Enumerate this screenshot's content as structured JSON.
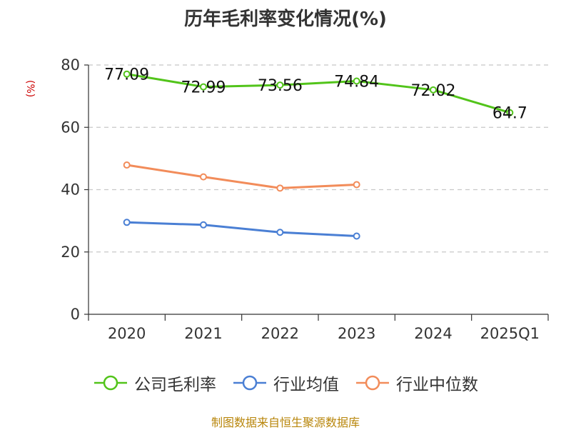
{
  "chart_data": {
    "type": "line",
    "title": "历年毛利率变化情况(%)",
    "unit_label": "(%)",
    "categories": [
      "2020",
      "2021",
      "2022",
      "2023",
      "2024",
      "2025Q1"
    ],
    "ylim": [
      0,
      80
    ],
    "yticks": [
      "0",
      "20",
      "40",
      "60",
      "80"
    ],
    "grid": true,
    "legend_position": "bottom",
    "series": [
      {
        "name": "公司毛利率",
        "color": "#52c41a",
        "values": [
          77.09,
          72.99,
          73.56,
          74.84,
          72.02,
          64.7
        ],
        "labels": [
          "77.09",
          "72.99",
          "73.56",
          "74.84",
          "72.02",
          "64.7"
        ]
      },
      {
        "name": "行业均值",
        "color": "#4a7fd4",
        "values": [
          29.5,
          28.7,
          26.3,
          25.1,
          null,
          null
        ]
      },
      {
        "name": "行业中位数",
        "color": "#f28c5a",
        "values": [
          47.9,
          44.1,
          40.5,
          41.6,
          null,
          null
        ]
      }
    ]
  },
  "footer": {
    "source": "制图数据来自恒生聚源数据库"
  }
}
